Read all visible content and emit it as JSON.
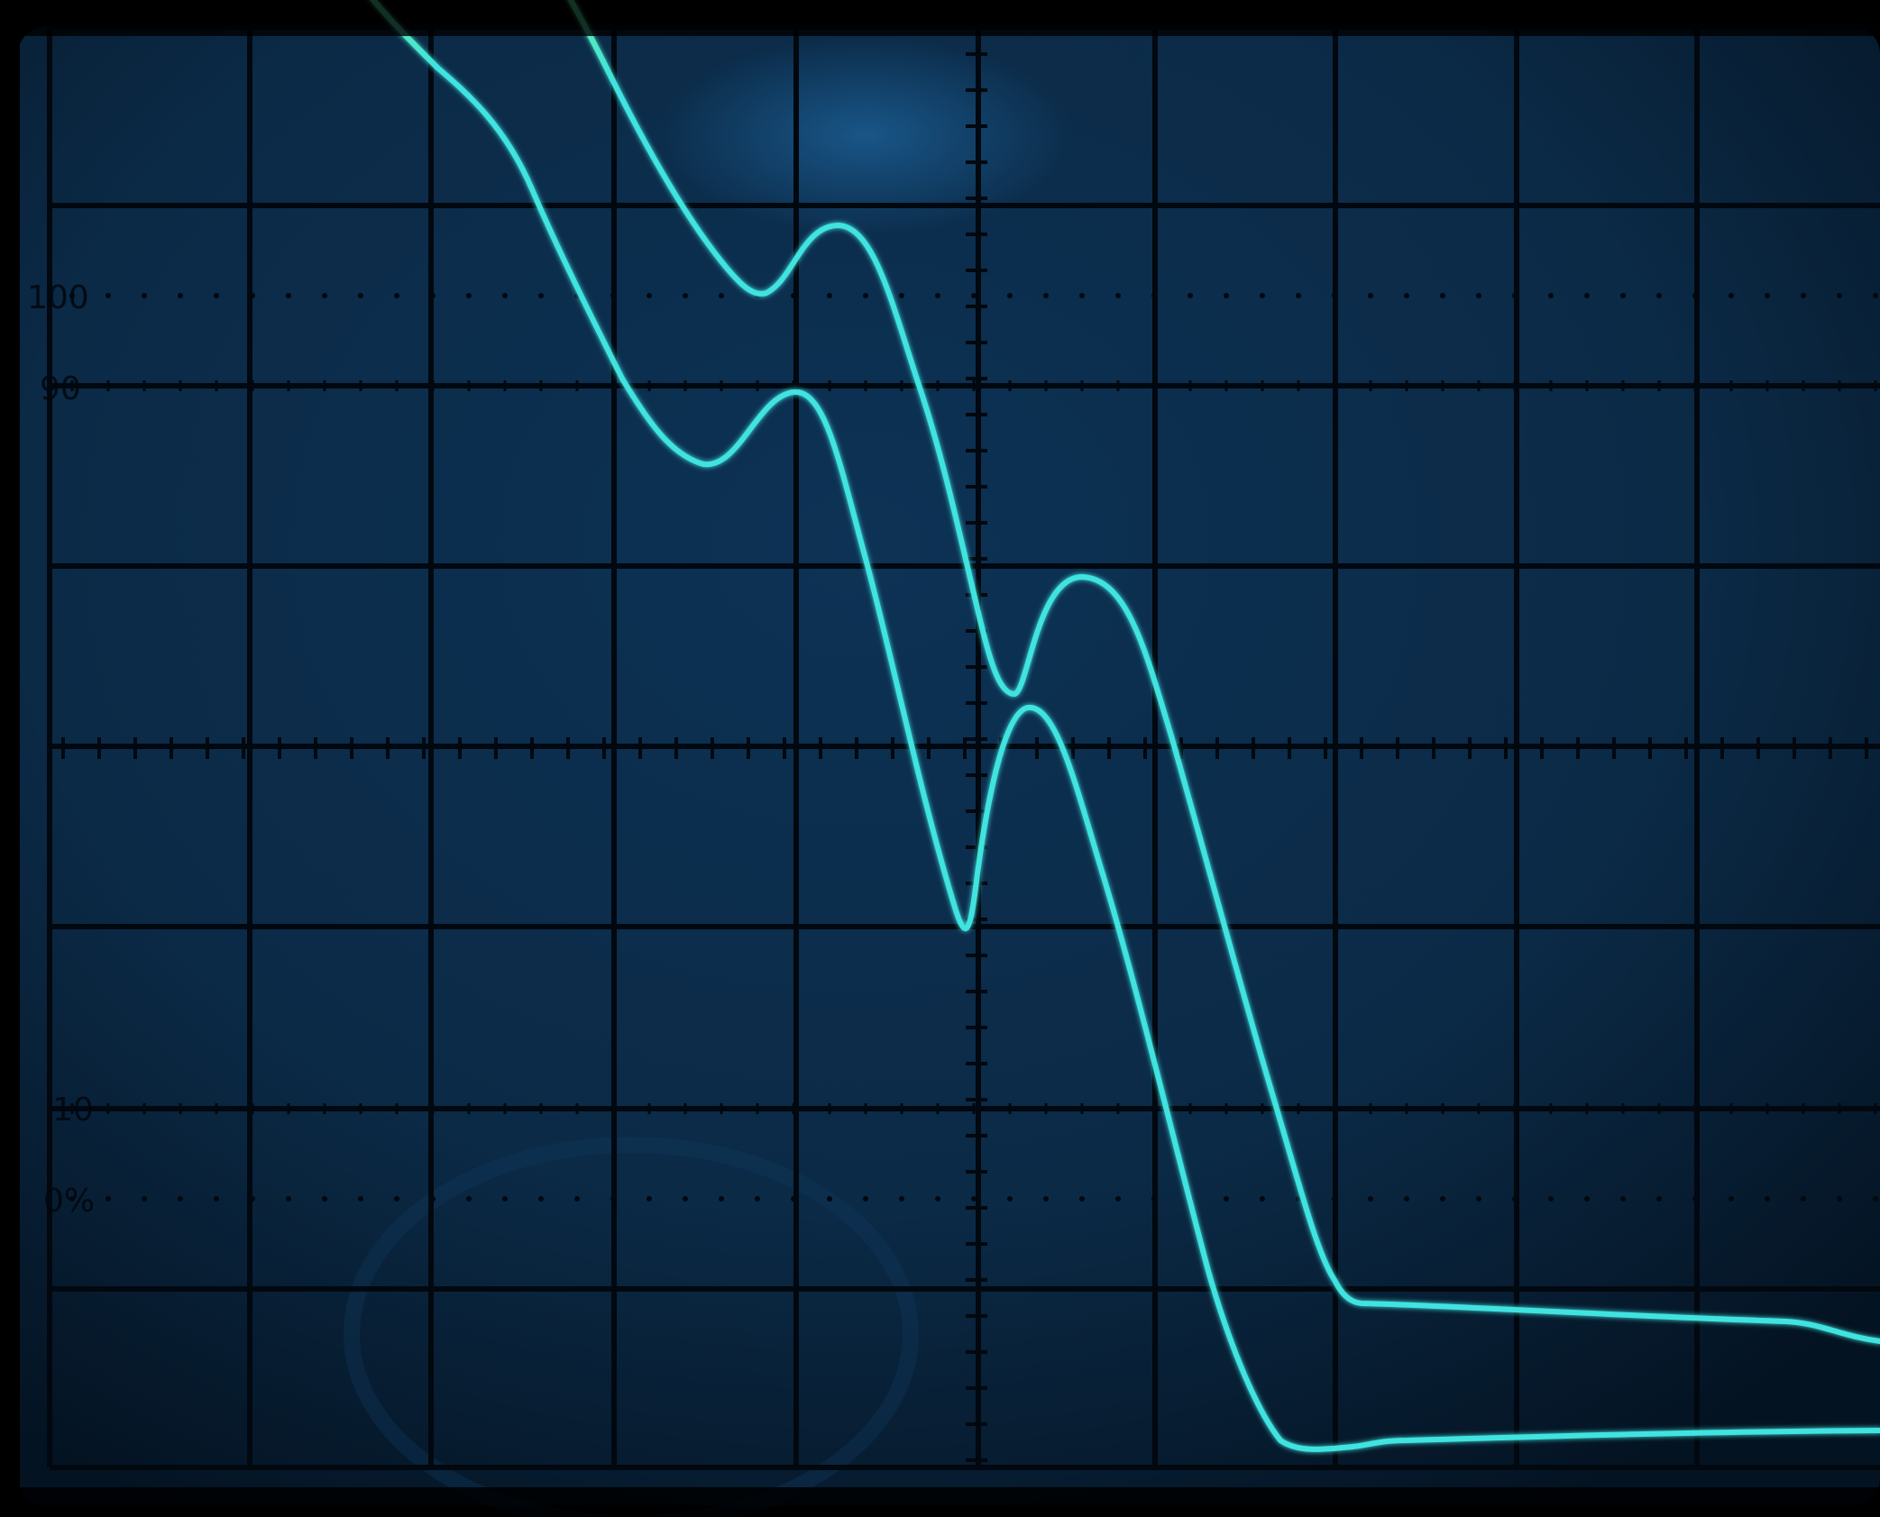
{
  "screen": {
    "background_color": "#000000",
    "screen_color": "#0b2a46",
    "screen_glow_color": "#1a5a8e",
    "graticule_color": "#02080f",
    "trace_color": "#3fe3df",
    "trace_top_color": "#62f0a0"
  },
  "scale_labels": {
    "label_100": "100",
    "label_90": "90",
    "label_10": "10",
    "label_0": "0%"
  }
}
